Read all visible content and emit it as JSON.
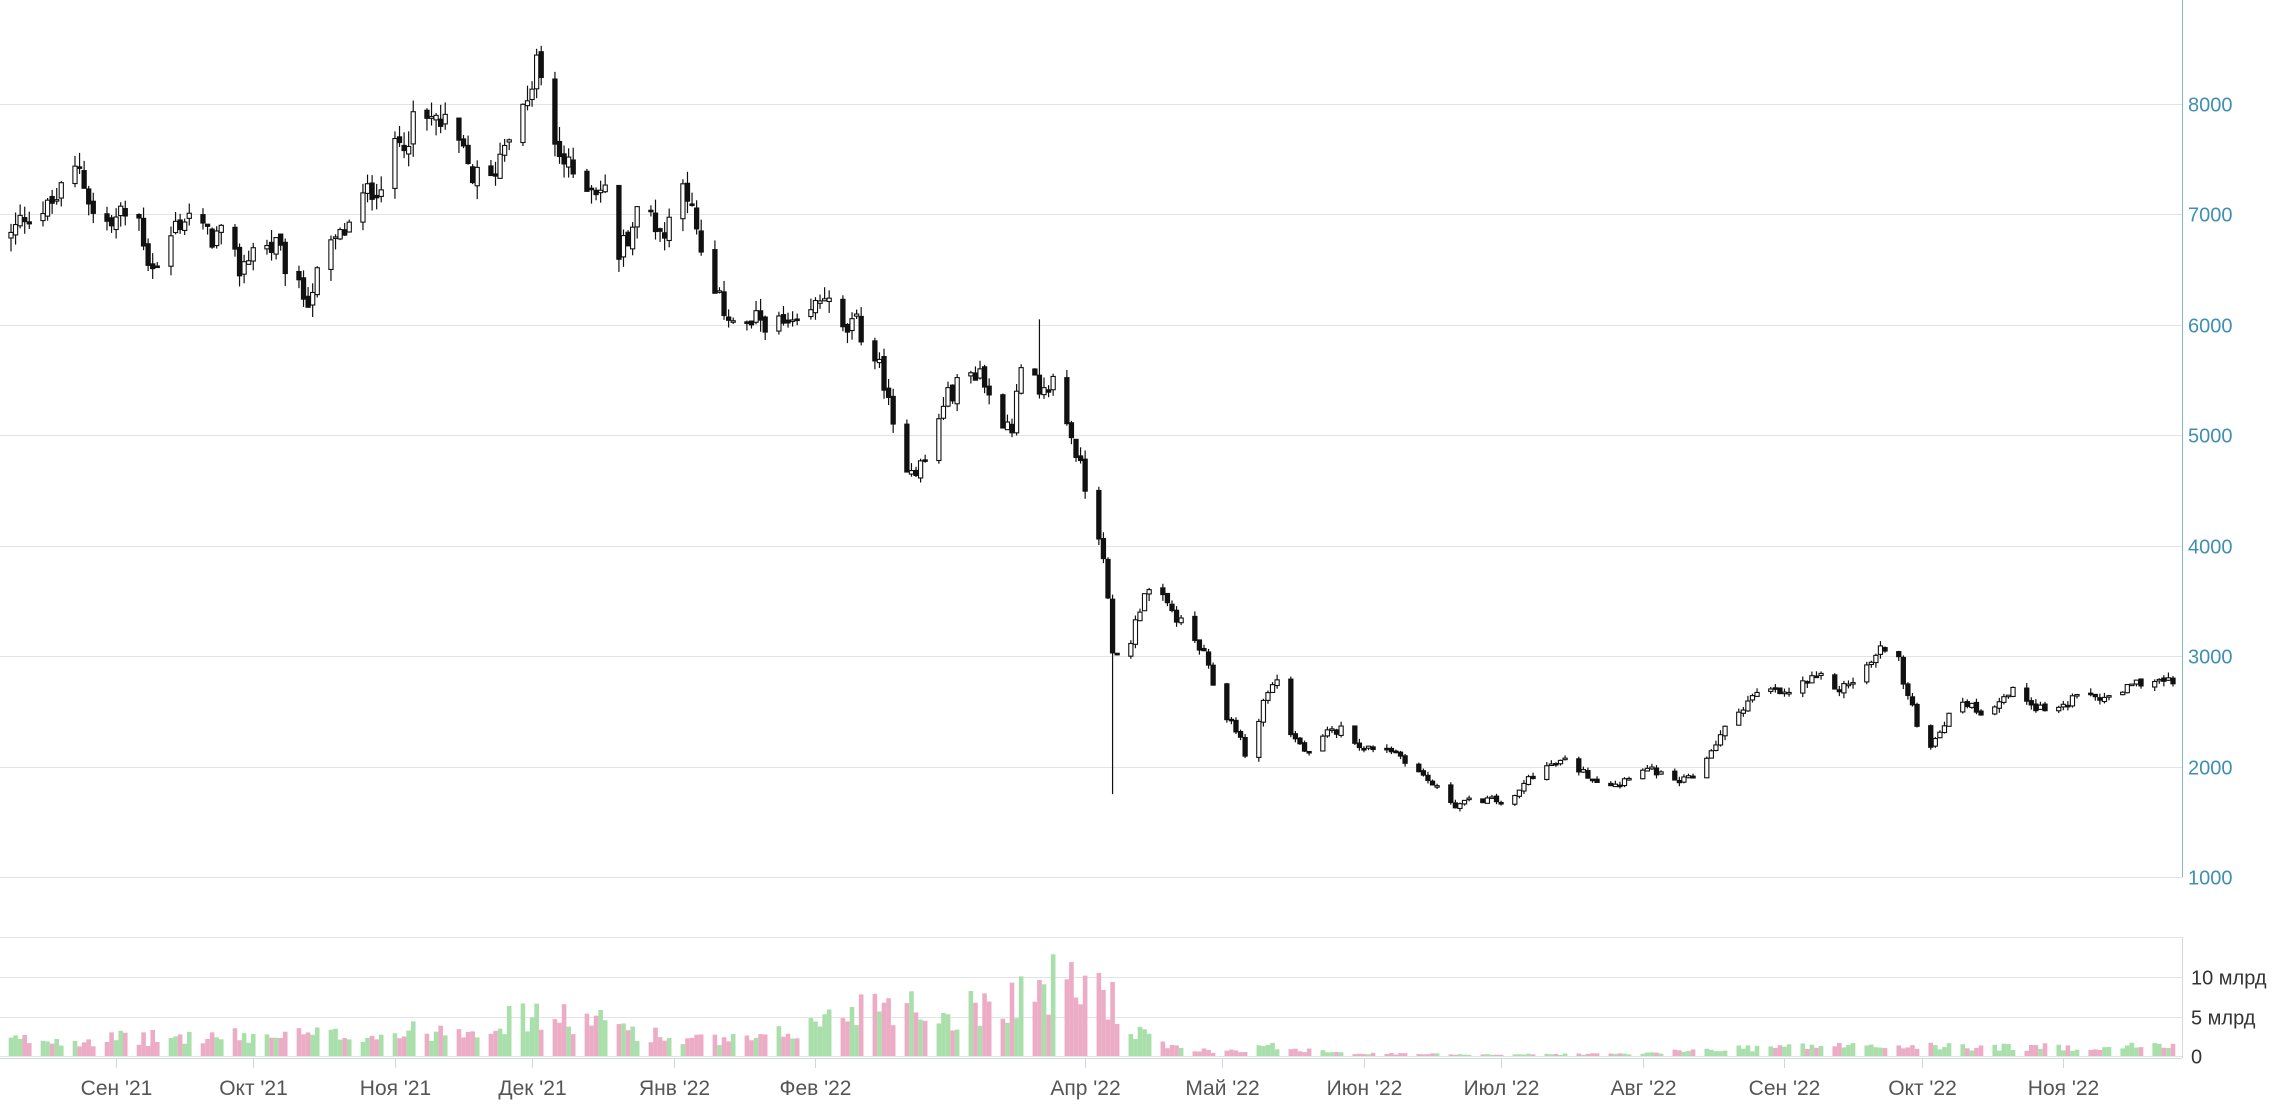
{
  "chart_data": [
    {
      "type": "candlestick",
      "title": "",
      "xlabel": "",
      "ylabel": "",
      "ylim": [
        1000,
        8900
      ],
      "y_ticks": [
        1000,
        2000,
        3000,
        4000,
        5000,
        6000,
        7000,
        8000
      ],
      "y_tick_labels": [
        "1000",
        "2000",
        "3000",
        "4000",
        "5000",
        "6000",
        "7000",
        "8000"
      ],
      "x_tick_labels": [
        "Сен '21",
        "Окт '21",
        "Ноя '21",
        "Дек '21",
        "Янв '22",
        "Фев '22",
        "Апр '22",
        "Май '22",
        "Июн '22",
        "Июл '22",
        "Авг '22",
        "Сен '22",
        "Окт '22",
        "Ноя '22"
      ],
      "x_tick_dates": [
        "2021-09-01",
        "2021-10-01",
        "2021-11-01",
        "2021-12-01",
        "2022-01-01",
        "2022-02-01",
        "2022-04-01",
        "2022-05-01",
        "2022-06-01",
        "2022-07-01",
        "2022-08-01",
        "2022-09-01",
        "2022-10-01",
        "2022-11-01"
      ],
      "date_range": [
        "2021-08-09",
        "2022-11-25"
      ],
      "grid": true,
      "series": [
        {
          "close_waypoints": [
            [
              "2021-08-09",
              6800
            ],
            [
              "2021-08-12",
              7000
            ],
            [
              "2021-08-17",
              7050
            ],
            [
              "2021-08-20",
              7200
            ],
            [
              "2021-08-24",
              7450
            ],
            [
              "2021-08-27",
              7000
            ],
            [
              "2021-08-31",
              6900
            ],
            [
              "2021-09-02",
              7000
            ],
            [
              "2021-09-06",
              6950
            ],
            [
              "2021-09-08",
              6600
            ],
            [
              "2021-09-10",
              6500
            ],
            [
              "2021-09-14",
              6900
            ],
            [
              "2021-09-17",
              7000
            ],
            [
              "2021-09-21",
              6800
            ],
            [
              "2021-09-24",
              6800
            ],
            [
              "2021-09-28",
              6500
            ],
            [
              "2021-10-01",
              6700
            ],
            [
              "2021-10-06",
              6700
            ],
            [
              "2021-10-11",
              6300
            ],
            [
              "2021-10-13",
              6250
            ],
            [
              "2021-10-18",
              6700
            ],
            [
              "2021-10-22",
              6900
            ],
            [
              "2021-10-26",
              7200
            ],
            [
              "2021-10-29",
              7300
            ],
            [
              "2021-11-02",
              7650
            ],
            [
              "2021-11-05",
              7800
            ],
            [
              "2021-11-10",
              7850
            ],
            [
              "2021-11-14",
              7700
            ],
            [
              "2021-11-18",
              7350
            ],
            [
              "2021-11-22",
              7300
            ],
            [
              "2021-11-26",
              7800
            ],
            [
              "2021-11-30",
              7950
            ],
            [
              "2021-12-02",
              8400
            ],
            [
              "2021-12-05",
              7700
            ],
            [
              "2021-12-09",
              7400
            ],
            [
              "2021-12-13",
              7300
            ],
            [
              "2021-12-17",
              7200
            ],
            [
              "2021-12-20",
              6650
            ],
            [
              "2021-12-24",
              7000
            ],
            [
              "2021-12-27",
              7000
            ],
            [
              "2021-12-30",
              6800
            ],
            [
              "2022-01-03",
              7400
            ],
            [
              "2022-01-06",
              6800
            ],
            [
              "2022-01-09",
              6300
            ],
            [
              "2022-01-13",
              6100
            ],
            [
              "2022-01-16",
              5950
            ],
            [
              "2022-01-20",
              6050
            ],
            [
              "2022-01-24",
              6000
            ],
            [
              "2022-01-28",
              5950
            ],
            [
              "2022-01-31",
              6100
            ],
            [
              "2022-02-03",
              6300
            ],
            [
              "2022-02-06",
              5900
            ],
            [
              "2022-02-10",
              6000
            ],
            [
              "2022-02-13",
              5800
            ],
            [
              "2022-02-16",
              5500
            ],
            [
              "2022-02-19",
              4800
            ],
            [
              "2022-02-23",
              4700
            ],
            [
              "2022-02-26",
              4800
            ],
            [
              "2022-03-01",
              5300
            ],
            [
              "2022-03-05",
              5500
            ],
            [
              "2022-03-09",
              5600
            ],
            [
              "2022-03-12",
              5200
            ],
            [
              "2022-03-16",
              5100
            ],
            [
              "2022-03-19",
              5800
            ],
            [
              "2022-03-22",
              5300
            ],
            [
              "2022-03-25",
              5500
            ],
            [
              "2022-03-29",
              5000
            ],
            [
              "2022-04-02",
              4400
            ],
            [
              "2022-04-05",
              3950
            ],
            [
              "2022-04-07",
              3000
            ],
            [
              "2022-04-10",
              3000
            ],
            [
              "2022-04-14",
              3600
            ],
            [
              "2022-04-17",
              3550
            ],
            [
              "2022-04-20",
              3400
            ],
            [
              "2022-04-24",
              3200
            ],
            [
              "2022-04-27",
              3000
            ],
            [
              "2022-05-01",
              2500
            ],
            [
              "2022-05-04",
              2350
            ],
            [
              "2022-05-07",
              2000
            ],
            [
              "2022-05-10",
              2600
            ],
            [
              "2022-05-13",
              2800
            ],
            [
              "2022-05-16",
              2300
            ],
            [
              "2022-05-20",
              2100
            ],
            [
              "2022-05-24",
              2300
            ],
            [
              "2022-05-28",
              2350
            ],
            [
              "2022-06-01",
              2150
            ],
            [
              "2022-06-05",
              2200
            ],
            [
              "2022-06-09",
              2100
            ],
            [
              "2022-06-13",
              1950
            ],
            [
              "2022-06-17",
              1800
            ],
            [
              "2022-06-21",
              1650
            ],
            [
              "2022-06-25",
              1700
            ],
            [
              "2022-06-29",
              1700
            ],
            [
              "2022-07-03",
              1650
            ],
            [
              "2022-07-07",
              1900
            ],
            [
              "2022-07-11",
              2000
            ],
            [
              "2022-07-15",
              2050
            ],
            [
              "2022-07-19",
              1950
            ],
            [
              "2022-07-23",
              1850
            ],
            [
              "2022-07-27",
              1850
            ],
            [
              "2022-07-31",
              2000
            ],
            [
              "2022-08-04",
              1950
            ],
            [
              "2022-08-08",
              1850
            ],
            [
              "2022-08-12",
              1900
            ],
            [
              "2022-08-16",
              2150
            ],
            [
              "2022-08-20",
              2400
            ],
            [
              "2022-08-24",
              2600
            ],
            [
              "2022-08-28",
              2700
            ],
            [
              "2022-09-01",
              2650
            ],
            [
              "2022-09-05",
              2750
            ],
            [
              "2022-09-09",
              2800
            ],
            [
              "2022-09-13",
              2700
            ],
            [
              "2022-09-17",
              2800
            ],
            [
              "2022-09-21",
              3000
            ],
            [
              "2022-09-25",
              3200
            ],
            [
              "2022-09-27",
              2750
            ],
            [
              "2022-09-30",
              2400
            ],
            [
              "2022-10-03",
              2200
            ],
            [
              "2022-10-06",
              2400
            ],
            [
              "2022-10-10",
              2600
            ],
            [
              "2022-10-14",
              2500
            ],
            [
              "2022-10-18",
              2600
            ],
            [
              "2022-10-22",
              2700
            ],
            [
              "2022-10-26",
              2550
            ],
            [
              "2022-10-30",
              2500
            ],
            [
              "2022-11-03",
              2600
            ],
            [
              "2022-11-07",
              2650
            ],
            [
              "2022-11-11",
              2600
            ],
            [
              "2022-11-15",
              2700
            ],
            [
              "2022-11-19",
              2800
            ],
            [
              "2022-11-25",
              2750
            ]
          ],
          "spikes": [
            {
              "date": "2022-04-07",
              "low": 1750
            },
            {
              "date": "2021-12-02",
              "high": 8500
            },
            {
              "date": "2022-03-22",
              "high": 6050
            }
          ]
        }
      ]
    },
    {
      "type": "bar",
      "title": "",
      "xlabel": "",
      "ylabel": "",
      "ylim": [
        0,
        15
      ],
      "y_ticks": [
        0,
        5,
        10
      ],
      "y_tick_labels": [
        "0",
        "5 млрд",
        "10 млрд"
      ],
      "grid": true,
      "colors": {
        "up": "#a9dfaa",
        "down": "#ecacc6"
      },
      "series": [
        {
          "volume_waypoints": [
            [
              "2021-08-09",
              2.0
            ],
            [
              "2021-09-01",
              2.2
            ],
            [
              "2021-10-01",
              2.5
            ],
            [
              "2021-11-01",
              2.8
            ],
            [
              "2021-11-20",
              4.0
            ],
            [
              "2021-12-01",
              5.0
            ],
            [
              "2021-12-20",
              4.0
            ],
            [
              "2022-01-01",
              2.0
            ],
            [
              "2022-01-20",
              2.0
            ],
            [
              "2022-02-01",
              4.0
            ],
            [
              "2022-02-15",
              7.5
            ],
            [
              "2022-03-01",
              5.0
            ],
            [
              "2022-03-15",
              7.5
            ],
            [
              "2022-03-25",
              9.0
            ],
            [
              "2022-04-05",
              9.0
            ],
            [
              "2022-04-10",
              3.5
            ],
            [
              "2022-04-20",
              1.0
            ],
            [
              "2022-05-01",
              0.6
            ],
            [
              "2022-05-12",
              1.2
            ],
            [
              "2022-06-01",
              0.3
            ],
            [
              "2022-07-01",
              0.2
            ],
            [
              "2022-08-01",
              0.3
            ],
            [
              "2022-08-20",
              1.0
            ],
            [
              "2022-09-10",
              1.3
            ],
            [
              "2022-10-01",
              1.2
            ],
            [
              "2022-11-01",
              1.1
            ],
            [
              "2022-11-25",
              1.3
            ]
          ]
        }
      ]
    }
  ],
  "colors": {
    "grid": "#e3e3e3",
    "axis": "#cfd8dc",
    "price_axis": "#85b7c9",
    "tick_text_price": "#3f8fb1",
    "tick_text": "#555555",
    "candle_stroke": "#111111"
  }
}
